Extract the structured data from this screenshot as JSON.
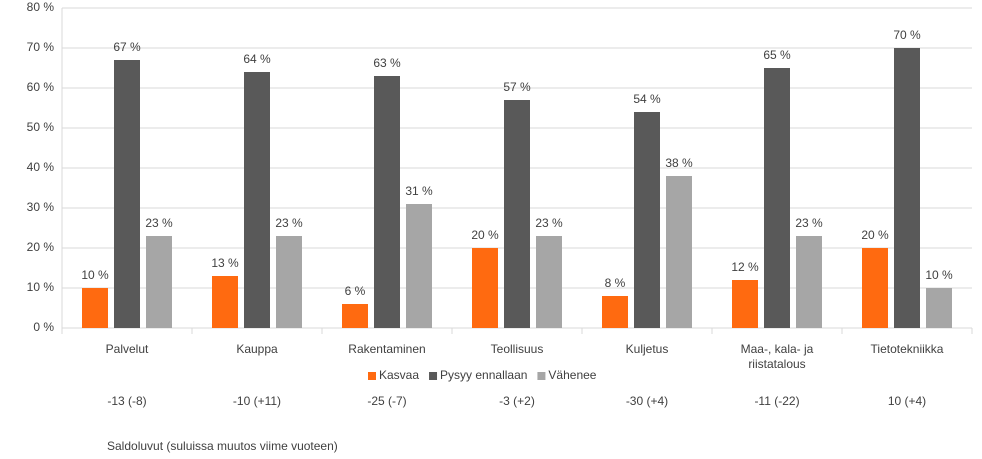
{
  "chart_data": {
    "type": "bar",
    "categories": [
      "Palvelut",
      "Kauppa",
      "Rakentaminen",
      "Teollisuus",
      "Kuljetus",
      "Maa-, kala- ja riistatalous",
      "Tietotekniikka"
    ],
    "series": [
      {
        "name": "Kasvaa",
        "color": "#ff6a10",
        "values": [
          10,
          13,
          6,
          20,
          8,
          12,
          20
        ],
        "value_labels": [
          "10 %",
          "13 %",
          "6 %",
          "20 %",
          "8 %",
          "12 %",
          "20 %"
        ]
      },
      {
        "name": "Pysyy ennallaan",
        "color": "#595959",
        "values": [
          67,
          64,
          63,
          57,
          54,
          65,
          70
        ],
        "value_labels": [
          "67 %",
          "64 %",
          "63 %",
          "57 %",
          "54 %",
          "65 %",
          "70 %"
        ]
      },
      {
        "name": "Vähenee",
        "color": "#a6a6a6",
        "values": [
          23,
          23,
          31,
          23,
          38,
          23,
          10
        ],
        "value_labels": [
          "23 %",
          "23 %",
          "31 %",
          "23 %",
          "38 %",
          "23 %",
          "10 %"
        ]
      }
    ],
    "ylim": [
      0,
      80
    ],
    "yticks": [
      {
        "value": 0,
        "label": "0 %"
      },
      {
        "value": 10,
        "label": "10 %"
      },
      {
        "value": 20,
        "label": "20 %"
      },
      {
        "value": 30,
        "label": "30 %"
      },
      {
        "value": 40,
        "label": "40 %"
      },
      {
        "value": 50,
        "label": "50 %"
      },
      {
        "value": 60,
        "label": "60 %"
      },
      {
        "value": 70,
        "label": "70 %"
      },
      {
        "value": 80,
        "label": "80 %"
      }
    ],
    "grid": true,
    "legend": "bottom",
    "saldo": [
      "-13 (-8)",
      "-10 (+11)",
      "-25 (-7)",
      "-3 (+2)",
      "-30 (+4)",
      "-11 (-22)",
      "10 (+4)"
    ],
    "note": "Saldoluvut (suluissa muutos viime vuoteen)"
  }
}
